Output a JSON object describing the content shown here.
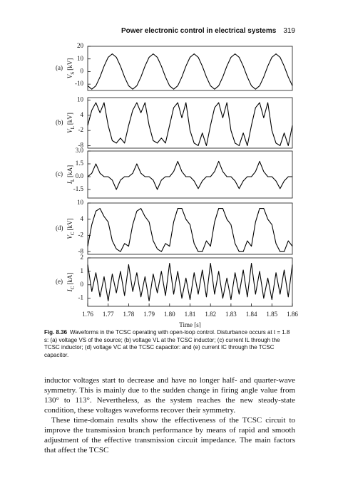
{
  "header": {
    "title": "Power electronic control in electrical systems",
    "page": "319"
  },
  "chart_data": [
    {
      "type": "line",
      "panel": "(a)",
      "y_label": {
        "symbol": "V",
        "sub": "S",
        "unit": "[kV]"
      },
      "x": [
        1.76,
        1.762,
        1.764,
        1.766,
        1.768,
        1.77,
        1.772,
        1.774,
        1.776,
        1.778,
        1.78,
        1.782,
        1.784,
        1.786,
        1.788,
        1.79,
        1.792,
        1.794,
        1.796,
        1.798,
        1.8,
        1.802,
        1.804,
        1.806,
        1.808,
        1.81,
        1.812,
        1.814,
        1.816,
        1.818,
        1.82,
        1.822,
        1.824,
        1.826,
        1.828,
        1.83,
        1.832,
        1.834,
        1.836,
        1.838,
        1.84,
        1.842,
        1.844,
        1.846,
        1.848,
        1.85,
        1.852,
        1.854,
        1.856,
        1.858,
        1.86
      ],
      "values": [
        -11.3,
        -14,
        -11.3,
        -4.3,
        4.3,
        11.3,
        14,
        11.3,
        4.3,
        -4.3,
        -11.3,
        -14,
        -11.3,
        -4.3,
        4.3,
        11.3,
        14,
        11.3,
        4.3,
        -4.3,
        -11.3,
        -14,
        -11.3,
        -4.3,
        4.3,
        11.3,
        14,
        11.3,
        4.3,
        -4.3,
        -11.3,
        -14,
        -11.3,
        -4.3,
        4.3,
        11.3,
        14,
        11.3,
        4.3,
        -4.3,
        -11.3,
        -14,
        -11.3,
        -4.3,
        4.3,
        11.3,
        14,
        11.3,
        4.3,
        -4.3,
        -11.3
      ],
      "color": "#000000",
      "xlim": [
        1.76,
        1.86
      ],
      "ylim": [
        -15,
        20
      ],
      "yticks": [
        20,
        10,
        0,
        -10
      ]
    },
    {
      "type": "line",
      "panel": "(b)",
      "y_label": {
        "symbol": "V",
        "sub": "L",
        "unit": "[kV]"
      },
      "x": [
        1.76,
        1.762,
        1.764,
        1.766,
        1.768,
        1.77,
        1.772,
        1.774,
        1.776,
        1.778,
        1.78,
        1.782,
        1.784,
        1.786,
        1.788,
        1.79,
        1.792,
        1.794,
        1.796,
        1.798,
        1.8,
        1.802,
        1.804,
        1.806,
        1.808,
        1.81,
        1.812,
        1.814,
        1.816,
        1.818,
        1.82,
        1.822,
        1.824,
        1.826,
        1.828,
        1.83,
        1.832,
        1.834,
        1.836,
        1.838,
        1.84,
        1.842,
        1.844,
        1.846,
        1.848,
        1.85,
        1.852,
        1.854,
        1.856,
        1.858,
        1.86
      ],
      "values": [
        0,
        6,
        9,
        5,
        9,
        0,
        -6,
        -7,
        -5,
        -7,
        0,
        6,
        9,
        5,
        9,
        0,
        -6,
        -7,
        -5,
        -7,
        0,
        7,
        9,
        3,
        9,
        -2,
        -7,
        -8,
        -3,
        -8,
        0,
        7,
        9,
        3,
        9,
        -2,
        -7,
        -8,
        -3,
        -8,
        0,
        7,
        9,
        3,
        9,
        -2,
        -7,
        -8,
        -3,
        -8,
        0
      ],
      "color": "#000000",
      "xlim": [
        1.76,
        1.86
      ],
      "ylim": [
        -9,
        11
      ],
      "yticks": [
        10,
        4,
        -2,
        -8
      ]
    },
    {
      "type": "line",
      "panel": "(c)",
      "y_label": {
        "symbol": "I",
        "sub": "L",
        "unit": "[kA]"
      },
      "x": [
        1.76,
        1.762,
        1.764,
        1.766,
        1.768,
        1.77,
        1.772,
        1.774,
        1.776,
        1.778,
        1.78,
        1.782,
        1.784,
        1.786,
        1.788,
        1.79,
        1.792,
        1.794,
        1.796,
        1.798,
        1.8,
        1.802,
        1.804,
        1.806,
        1.808,
        1.81,
        1.812,
        1.814,
        1.816,
        1.818,
        1.82,
        1.822,
        1.824,
        1.826,
        1.828,
        1.83,
        1.832,
        1.834,
        1.836,
        1.838,
        1.84,
        1.842,
        1.844,
        1.846,
        1.848,
        1.85,
        1.852,
        1.854,
        1.856,
        1.858,
        1.86
      ],
      "values": [
        0,
        0.4,
        1.5,
        0.4,
        0,
        0,
        -0.4,
        -1.5,
        -0.4,
        0,
        0,
        0.4,
        1.5,
        0.4,
        0,
        0,
        -0.4,
        -1.5,
        -0.4,
        0,
        0,
        0.6,
        1.8,
        0.6,
        0,
        0,
        -0.5,
        -1.4,
        -0.5,
        0,
        0,
        0.6,
        1.8,
        0.6,
        0,
        0,
        -0.5,
        -1.4,
        -0.5,
        0,
        0,
        0.6,
        1.8,
        0.6,
        0,
        0,
        -0.5,
        -1.4,
        -0.5,
        0,
        0
      ],
      "color": "#000000",
      "xlim": [
        1.76,
        1.86
      ],
      "ylim": [
        -2.5,
        3.0
      ],
      "yticks": [
        {
          "value": 3.0,
          "label": "3.0"
        },
        1.5,
        {
          "value": 0,
          "label": "0.0"
        },
        -1.5
      ]
    },
    {
      "type": "line",
      "panel": "(d)",
      "y_label": {
        "symbol": "V",
        "sub": "C",
        "unit": "[kV]"
      },
      "x": [
        1.76,
        1.762,
        1.764,
        1.766,
        1.768,
        1.77,
        1.772,
        1.774,
        1.776,
        1.778,
        1.78,
        1.782,
        1.784,
        1.786,
        1.788,
        1.79,
        1.792,
        1.794,
        1.796,
        1.798,
        1.8,
        1.802,
        1.804,
        1.806,
        1.808,
        1.81,
        1.812,
        1.814,
        1.816,
        1.818,
        1.82,
        1.822,
        1.824,
        1.826,
        1.828,
        1.83,
        1.832,
        1.834,
        1.836,
        1.838,
        1.84,
        1.842,
        1.844,
        1.846,
        1.848,
        1.85,
        1.852,
        1.854,
        1.856,
        1.858,
        1.86
      ],
      "values": [
        -6,
        2,
        7,
        8,
        5,
        3,
        -4,
        -7,
        -8,
        -5,
        -6,
        2,
        7,
        8,
        5,
        3,
        -4,
        -7,
        -8,
        -5,
        -6,
        3,
        8,
        8,
        4,
        2,
        -5,
        -8,
        -8,
        -4,
        -6,
        3,
        8,
        8,
        4,
        2,
        -5,
        -8,
        -8,
        -4,
        -6,
        3,
        8,
        8,
        4,
        2,
        -5,
        -8,
        -8,
        -4,
        -6
      ],
      "color": "#000000",
      "xlim": [
        1.76,
        1.86
      ],
      "ylim": [
        -9,
        10
      ],
      "yticks": [
        10,
        4,
        -2,
        -8
      ]
    },
    {
      "type": "line",
      "panel": "(e)",
      "y_label": {
        "symbol": "I",
        "sub": "C",
        "unit": "[kA]"
      },
      "x_label": "Time [s]",
      "x": [
        1.76,
        1.762,
        1.764,
        1.766,
        1.768,
        1.77,
        1.772,
        1.774,
        1.776,
        1.778,
        1.78,
        1.782,
        1.784,
        1.786,
        1.788,
        1.79,
        1.792,
        1.794,
        1.796,
        1.798,
        1.8,
        1.802,
        1.804,
        1.806,
        1.808,
        1.81,
        1.812,
        1.814,
        1.816,
        1.818,
        1.82,
        1.822,
        1.824,
        1.826,
        1.828,
        1.83,
        1.832,
        1.834,
        1.836,
        1.838,
        1.84,
        1.842,
        1.844,
        1.846,
        1.848,
        1.85,
        1.852,
        1.854,
        1.856,
        1.858,
        1.86
      ],
      "values": [
        1.5,
        -0.5,
        0.9,
        -0.9,
        0.6,
        -1.2,
        0.8,
        -0.6,
        1.0,
        -0.8,
        1.5,
        -0.5,
        0.9,
        -0.9,
        0.6,
        -1.2,
        0.8,
        -0.6,
        1.0,
        -0.8,
        1.6,
        -0.7,
        1.0,
        -1.0,
        0.5,
        -1.1,
        0.9,
        -0.7,
        1.1,
        -0.9,
        1.6,
        -0.7,
        1.0,
        -1.0,
        0.5,
        -1.1,
        0.9,
        -0.7,
        1.1,
        -0.9,
        1.6,
        -0.7,
        1.0,
        -1.0,
        0.5,
        -1.1,
        0.9,
        -0.7,
        1.1,
        -0.9,
        1.5
      ],
      "color": "#000000",
      "xlim": [
        1.76,
        1.86
      ],
      "ylim": [
        -1.6,
        2
      ],
      "yticks": [
        2,
        1,
        0,
        -1
      ],
      "xticks": [
        {
          "value": 1.76,
          "label": "1.76"
        },
        {
          "value": 1.77,
          "label": "1.77"
        },
        {
          "value": 1.78,
          "label": "1.78"
        },
        {
          "value": 1.79,
          "label": "1.79"
        },
        {
          "value": 1.8,
          "label": "1.80"
        },
        {
          "value": 1.81,
          "label": "1.81"
        },
        {
          "value": 1.82,
          "label": "1.82"
        },
        {
          "value": 1.83,
          "label": "1.83"
        },
        {
          "value": 1.84,
          "label": "1.84"
        },
        {
          "value": 1.85,
          "label": "1.85"
        },
        {
          "value": 1.86,
          "label": "1.86"
        }
      ]
    }
  ],
  "caption": {
    "label": "Fig. 8.36",
    "text": "Waveforms in the TCSC operating with open-loop control. Disturbance occurs at t = 1.8 s: (a) voltage VS of the source; (b) voltage VL at the TCSC inductor; (c) current IL through the TCSC inductor; (d) voltage VC at the TCSC capacitor: and (e) current IC through the TCSC capacitor."
  },
  "body": [
    "inductor voltages start to decrease and have no longer half- and quarter-wave symmetry. This is mainly due to the sudden change in firing angle value from 130° to 113°. Nevertheless, as the system reaches the new steady-state condition, these voltages waveforms recover their symmetry.",
    "These time-domain results show the effectiveness of the TCSC circuit to improve the transmission branch performance by means of rapid and smooth adjustment of the effective transmission circuit impedance. The main factors that affect the TCSC"
  ]
}
